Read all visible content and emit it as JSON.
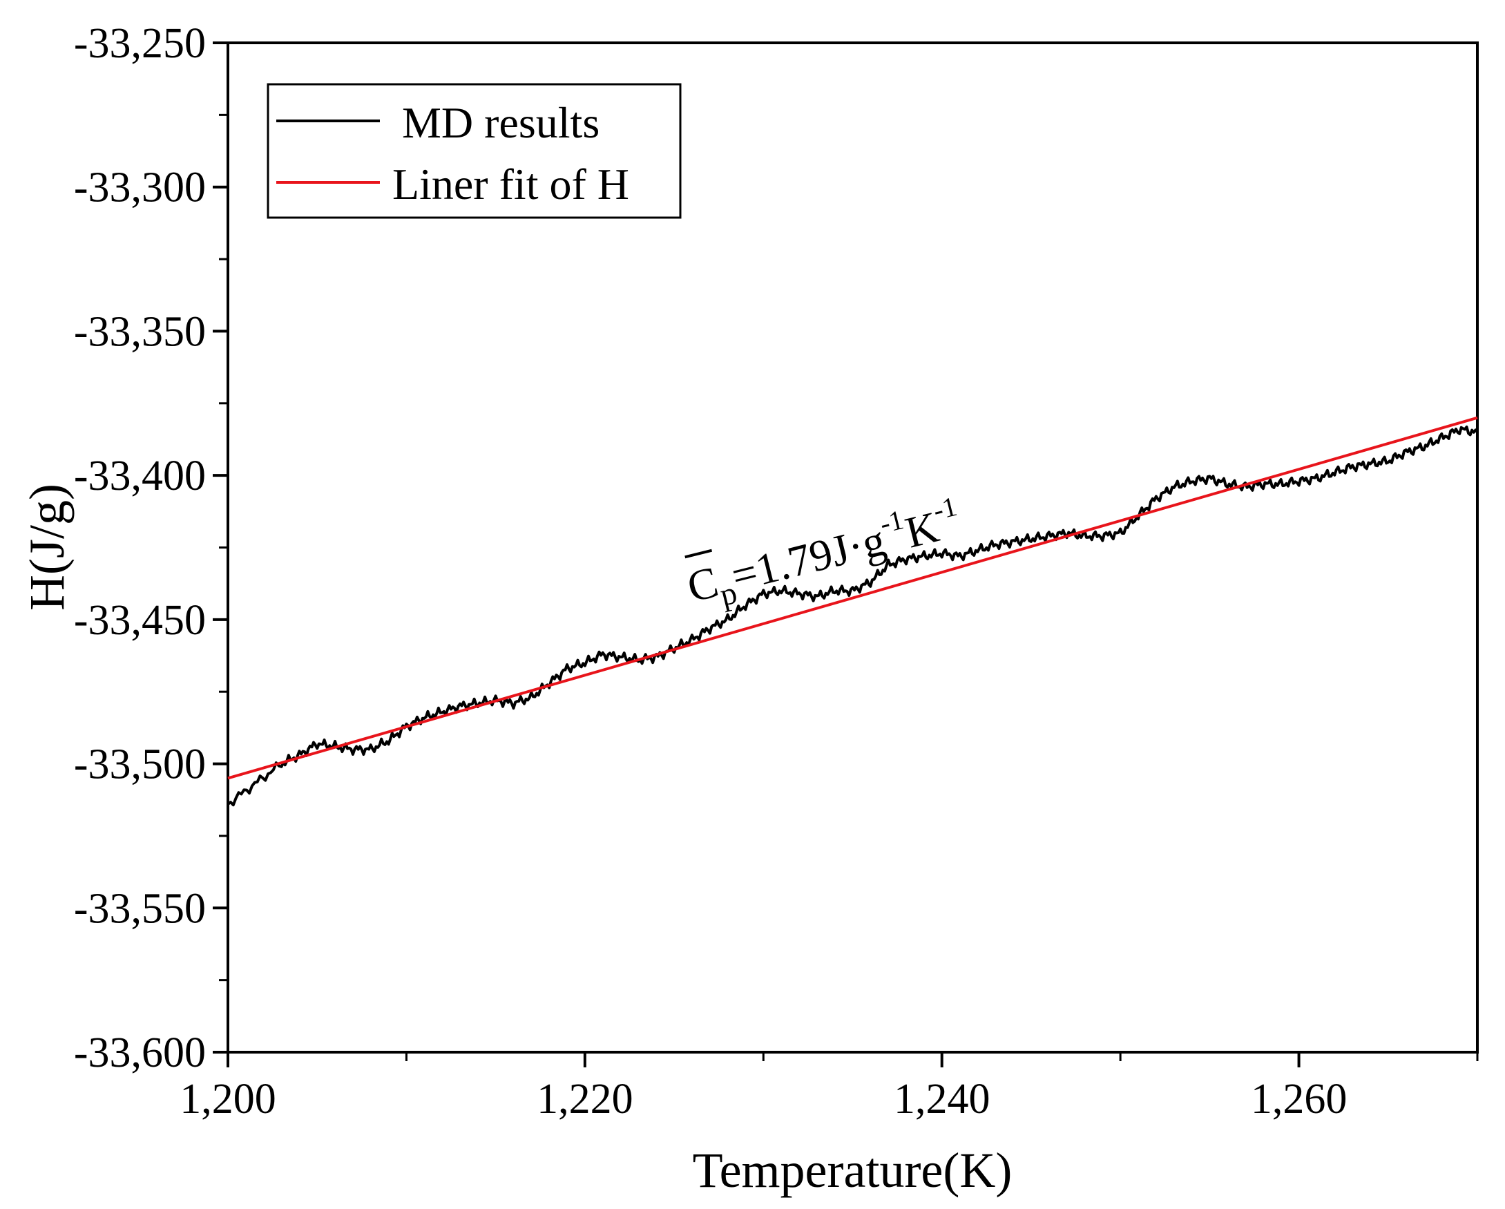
{
  "chart_data": {
    "type": "line",
    "title": "",
    "xlabel": "Temperature(K)",
    "ylabel": "H(J/g)",
    "xlim": [
      1200,
      1270
    ],
    "ylim": [
      -33600,
      -33250
    ],
    "x_ticks": [
      1200,
      1220,
      1240,
      1260
    ],
    "x_tick_labels": [
      "1,200",
      "1,220",
      "1,240",
      "1,260"
    ],
    "y_ticks": [
      -33250,
      -33300,
      -33350,
      -33400,
      -33450,
      -33500,
      -33550,
      -33600
    ],
    "y_tick_labels": [
      "-33,250",
      "-33,300",
      "-33,350",
      "-33,400",
      "-33,450",
      "-33,500",
      "-33,550",
      "-33,600"
    ],
    "grid": false,
    "legend_position": "top-left",
    "legend": [
      {
        "label": "MD results",
        "color": "#000000"
      },
      {
        "label": "Liner fit of H",
        "color": "#e8141b"
      }
    ],
    "series": [
      {
        "name": "MD results",
        "color": "#000000",
        "kind": "line",
        "x": [
          1200,
          1201.5,
          1203,
          1204,
          1205,
          1206,
          1207,
          1208,
          1209,
          1210,
          1211,
          1212,
          1213,
          1214,
          1215,
          1216,
          1217,
          1218,
          1219,
          1220,
          1221,
          1222,
          1223,
          1224,
          1225,
          1226,
          1227,
          1228,
          1229,
          1230,
          1231,
          1232,
          1233,
          1234,
          1235,
          1236,
          1237,
          1238,
          1239,
          1240,
          1241,
          1242,
          1243,
          1244,
          1245,
          1246,
          1247,
          1248,
          1249,
          1250,
          1251,
          1252,
          1253,
          1254,
          1255,
          1256,
          1257,
          1258,
          1259,
          1260,
          1261,
          1262,
          1263,
          1264,
          1265,
          1266,
          1267,
          1268,
          1269,
          1270
        ],
        "y": [
          -33514,
          -33507,
          -33500,
          -33497,
          -33493,
          -33494,
          -33495,
          -33495,
          -33492,
          -33487,
          -33484,
          -33482,
          -33480,
          -33479,
          -33478,
          -33479,
          -33477,
          -33472,
          -33467,
          -33465,
          -33462,
          -33463,
          -33464,
          -33463,
          -33460,
          -33457,
          -33453,
          -33450,
          -33445,
          -33441,
          -33440,
          -33441,
          -33442,
          -33440,
          -33440,
          -33437,
          -33431,
          -33429,
          -33428,
          -33427,
          -33428,
          -33426,
          -33424,
          -33423,
          -33422,
          -33421,
          -33420,
          -33421,
          -33421,
          -33420,
          -33414,
          -33408,
          -33404,
          -33402,
          -33401,
          -33403,
          -33404,
          -33403,
          -33403,
          -33402,
          -33401,
          -33399,
          -33397,
          -33396,
          -33395,
          -33392,
          -33390,
          -33387,
          -33384,
          -33385
        ]
      },
      {
        "name": "Liner fit of H",
        "color": "#e8141b",
        "kind": "line",
        "x": [
          1200,
          1270
        ],
        "y": [
          -33505,
          -33380
        ]
      }
    ],
    "annotations": [
      {
        "text_base": "C",
        "text_sub": "p",
        "text_main": "=1.79J·g",
        "text_sup1": "-1",
        "text_k": "K",
        "text_sup2": "-1",
        "x": 1226,
        "y": -33444,
        "rotation": -14
      }
    ]
  }
}
